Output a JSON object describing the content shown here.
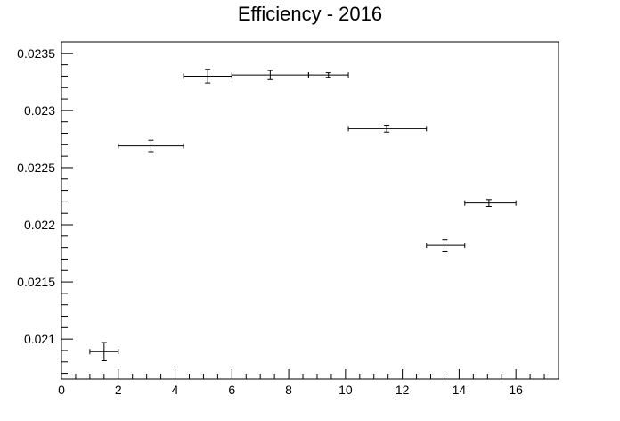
{
  "chart_data": {
    "type": "scatter",
    "title": "Efficiency - 2016",
    "xlabel": "",
    "ylabel": "",
    "xlim": [
      0,
      17.5
    ],
    "ylim": [
      0.02065,
      0.0236
    ],
    "x_ticks": [
      0,
      2,
      4,
      6,
      8,
      10,
      12,
      14,
      16
    ],
    "x_tick_labels": [
      "0",
      "2",
      "4",
      "6",
      "8",
      "10",
      "12",
      "14",
      "16"
    ],
    "y_ticks": [
      0.021,
      0.0215,
      0.022,
      0.0225,
      0.023,
      0.0235
    ],
    "y_tick_labels": [
      "0.021",
      "0.0215",
      "0.022",
      "0.0225",
      "0.023",
      "0.0235"
    ],
    "grid": false,
    "legend": "none",
    "color": "#000000",
    "points": [
      {
        "x": 1.5,
        "y": 0.02089,
        "xlow": 1.0,
        "xhigh": 2.0,
        "yerr": 8e-05
      },
      {
        "x": 3.15,
        "y": 0.02269,
        "xlow": 2.0,
        "xhigh": 4.3,
        "yerr": 5e-05
      },
      {
        "x": 5.15,
        "y": 0.0233,
        "xlow": 4.3,
        "xhigh": 6.0,
        "yerr": 6e-05
      },
      {
        "x": 7.35,
        "y": 0.02331,
        "xlow": 6.0,
        "xhigh": 8.7,
        "yerr": 4e-05
      },
      {
        "x": 9.4,
        "y": 0.02331,
        "xlow": 8.7,
        "xhigh": 10.1,
        "yerr": 2e-05
      },
      {
        "x": 11.45,
        "y": 0.02284,
        "xlow": 10.1,
        "xhigh": 12.85,
        "yerr": 3e-05
      },
      {
        "x": 13.5,
        "y": 0.02182,
        "xlow": 12.85,
        "xhigh": 14.2,
        "yerr": 5e-05
      },
      {
        "x": 15.05,
        "y": 0.02219,
        "xlow": 14.2,
        "xhigh": 16.0,
        "yerr": 3e-05
      }
    ]
  }
}
